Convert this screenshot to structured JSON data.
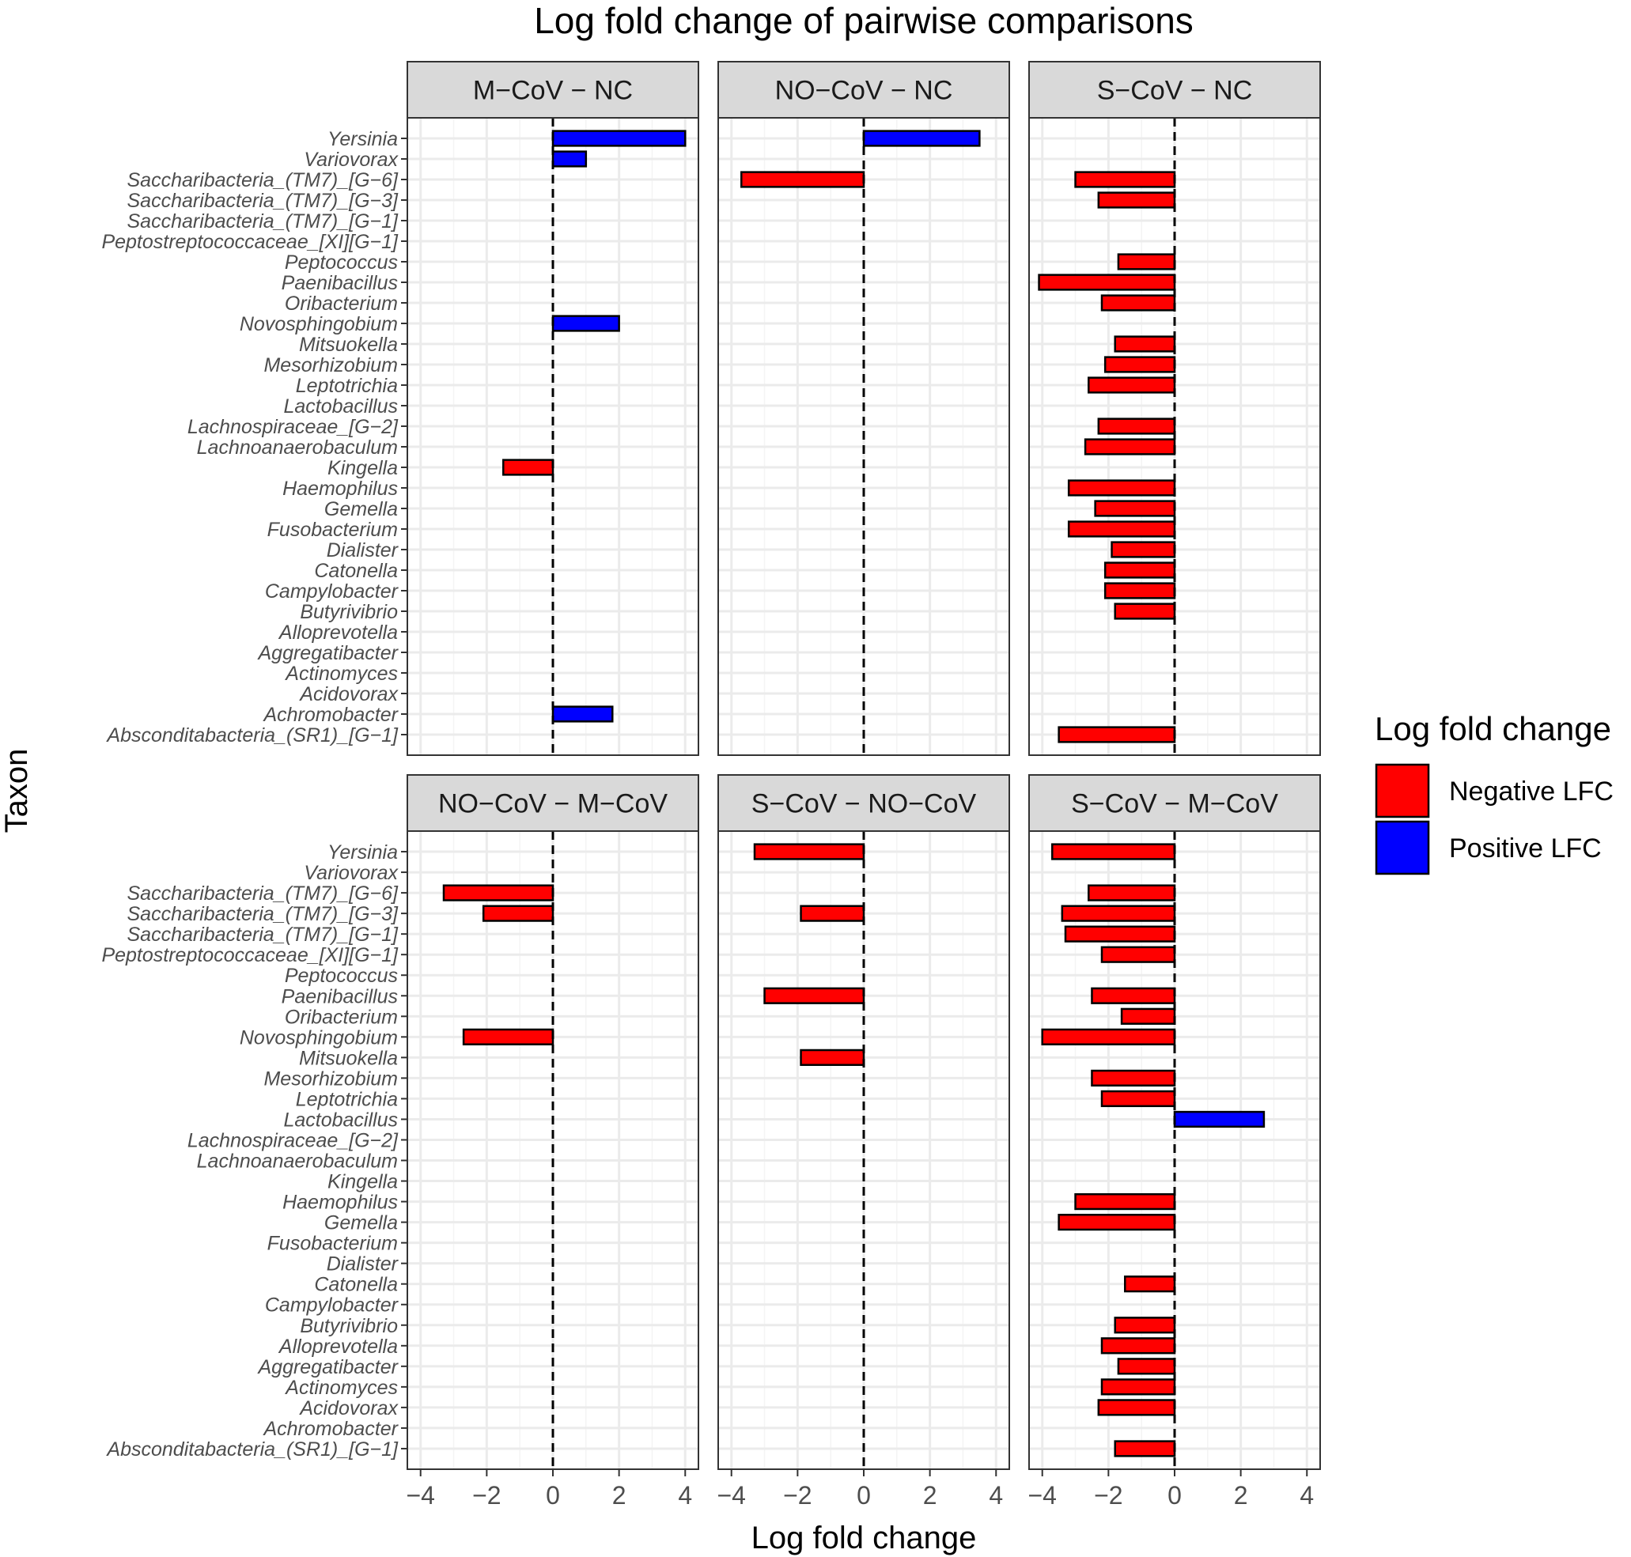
{
  "chart_data": {
    "type": "bar",
    "orientation": "horizontal",
    "title": "Log fold change of pairwise comparisons",
    "xlabel": "Log fold change",
    "ylabel": "Taxon",
    "xlim": [
      -4.4,
      4.4
    ],
    "xticks": [
      -4,
      -2,
      0,
      2,
      4
    ],
    "xtick_labels": [
      "−4",
      "−2",
      "0",
      "2",
      "4"
    ],
    "grid": true,
    "zero_line": "dashed",
    "legend": {
      "title": "Log fold change",
      "position": "right",
      "entries": [
        {
          "label": "Negative LFC",
          "color": "#ff0000"
        },
        {
          "label": "Positive LFC",
          "color": "#0000ff"
        }
      ]
    },
    "colors": {
      "negative": "#ff0000",
      "positive": "#0000ff",
      "strip": "#d9d9d9",
      "grid_major": "#ebebeb",
      "grid_minor": "#f4f4f4"
    },
    "categories": [
      "Yersinia",
      "Variovorax",
      "Saccharibacteria_(TM7)_[G−6]",
      "Saccharibacteria_(TM7)_[G−3]",
      "Saccharibacteria_(TM7)_[G−1]",
      "Peptostreptococcaceae_[XI][G−1]",
      "Peptococcus",
      "Paenibacillus",
      "Oribacterium",
      "Novosphingobium",
      "Mitsuokella",
      "Mesorhizobium",
      "Leptotrichia",
      "Lactobacillus",
      "Lachnospiraceae_[G−2]",
      "Lachnoanaerobaculum",
      "Kingella",
      "Haemophilus",
      "Gemella",
      "Fusobacterium",
      "Dialister",
      "Catonella",
      "Campylobacter",
      "Butyrivibrio",
      "Alloprevotella",
      "Aggregatibacter",
      "Actinomyces",
      "Acidovorax",
      "Achromobacter",
      "Absconditabacteria_(SR1)_[G−1]"
    ],
    "panels": [
      {
        "name": "M−CoV − NC",
        "values": [
          4.0,
          1.0,
          null,
          null,
          null,
          null,
          null,
          null,
          null,
          2.0,
          null,
          null,
          null,
          null,
          null,
          null,
          -1.5,
          null,
          null,
          null,
          null,
          null,
          null,
          null,
          null,
          null,
          null,
          null,
          1.8,
          null
        ]
      },
      {
        "name": "NO−CoV − NC",
        "values": [
          3.5,
          null,
          -3.7,
          null,
          null,
          null,
          null,
          null,
          null,
          null,
          null,
          null,
          null,
          null,
          null,
          null,
          null,
          null,
          null,
          null,
          null,
          null,
          null,
          null,
          null,
          null,
          null,
          null,
          null,
          null
        ]
      },
      {
        "name": "S−CoV − NC",
        "values": [
          null,
          null,
          -3.0,
          -2.3,
          null,
          null,
          -1.7,
          -4.1,
          -2.2,
          null,
          -1.8,
          -2.1,
          -2.6,
          null,
          -2.3,
          -2.7,
          null,
          -3.2,
          -2.4,
          -3.2,
          -1.9,
          -2.1,
          -2.1,
          -1.8,
          null,
          null,
          null,
          null,
          null,
          -3.5
        ]
      },
      {
        "name": "NO−CoV − M−CoV",
        "values": [
          null,
          null,
          -3.3,
          -2.1,
          null,
          null,
          null,
          null,
          null,
          -2.7,
          null,
          null,
          null,
          null,
          null,
          null,
          null,
          null,
          null,
          null,
          null,
          null,
          null,
          null,
          null,
          null,
          null,
          null,
          null,
          null
        ]
      },
      {
        "name": "S−CoV − NO−CoV",
        "values": [
          -3.3,
          null,
          null,
          -1.9,
          null,
          null,
          null,
          -3.0,
          null,
          null,
          -1.9,
          null,
          null,
          null,
          null,
          null,
          null,
          null,
          null,
          null,
          null,
          null,
          null,
          null,
          null,
          null,
          null,
          null,
          null,
          null
        ]
      },
      {
        "name": "S−CoV − M−CoV",
        "values": [
          -3.7,
          null,
          -2.6,
          -3.4,
          -3.3,
          -2.2,
          null,
          -2.5,
          -1.6,
          -4.0,
          null,
          -2.5,
          -2.2,
          2.7,
          null,
          null,
          null,
          -3.0,
          -3.5,
          null,
          null,
          -1.5,
          null,
          -1.8,
          -2.2,
          -1.7,
          -2.2,
          -2.3,
          null,
          -1.8
        ]
      }
    ]
  }
}
